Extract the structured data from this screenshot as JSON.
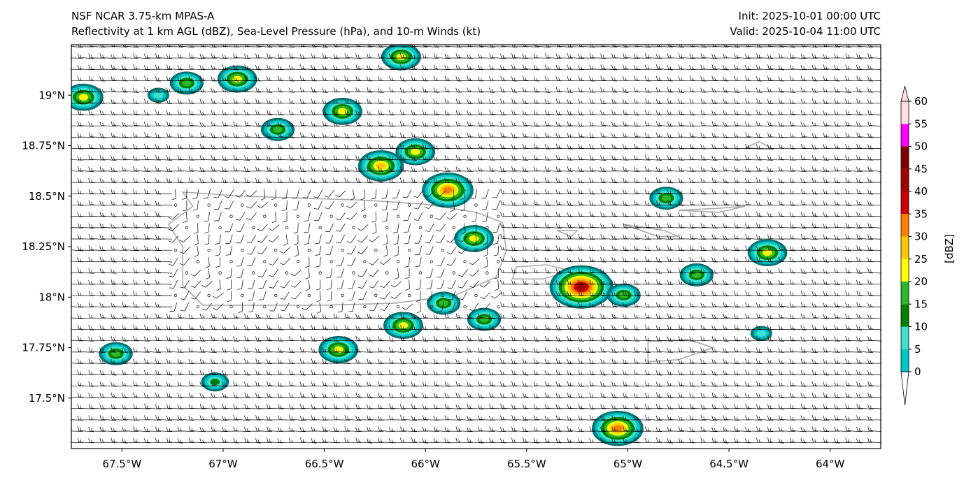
{
  "header": {
    "model": "NSF NCAR 3.75-km MPAS-A",
    "fields": "Reflectivity at 1 km AGL (dBZ), Sea-Level Pressure (hPa), and 10-m Winds (kt)",
    "init": "Init: 2025-10-01 00:00 UTC",
    "valid": "Valid: 2025-10-04 11:00 UTC"
  },
  "map": {
    "extent": {
      "lon": [
        -67.75,
        -63.75
      ],
      "lat": [
        17.25,
        19.25
      ]
    },
    "lat_ticks": [
      {
        "value": 19.0,
        "label": "19°N"
      },
      {
        "value": 18.75,
        "label": "18.75°N"
      },
      {
        "value": 18.5,
        "label": "18.5°N"
      },
      {
        "value": 18.25,
        "label": "18.25°N"
      },
      {
        "value": 18.0,
        "label": "18°N"
      },
      {
        "value": 17.75,
        "label": "17.75°N"
      },
      {
        "value": 17.5,
        "label": "17.5°N"
      }
    ],
    "lon_ticks": [
      {
        "value": -67.5,
        "label": "67.5°W"
      },
      {
        "value": -67.0,
        "label": "67°W"
      },
      {
        "value": -66.5,
        "label": "66.5°W"
      },
      {
        "value": -66.0,
        "label": "66°W"
      },
      {
        "value": -65.5,
        "label": "65.5°W"
      },
      {
        "value": -65.0,
        "label": "65°W"
      },
      {
        "value": -64.5,
        "label": "64.5°W"
      },
      {
        "value": -64.0,
        "label": "64°W"
      }
    ],
    "coastline_color": "#aaaaaa"
  },
  "colorbar": {
    "label": "[dBZ]",
    "ticks": [
      {
        "value": 0,
        "label": "0"
      },
      {
        "value": 5,
        "label": "5"
      },
      {
        "value": 10,
        "label": "10"
      },
      {
        "value": 15,
        "label": "15"
      },
      {
        "value": 20,
        "label": "20"
      },
      {
        "value": 25,
        "label": "25"
      },
      {
        "value": 30,
        "label": "30"
      },
      {
        "value": 35,
        "label": "35"
      },
      {
        "value": 40,
        "label": "40"
      },
      {
        "value": 45,
        "label": "45"
      },
      {
        "value": 50,
        "label": "50"
      },
      {
        "value": 55,
        "label": "55"
      },
      {
        "value": 60,
        "label": "60"
      }
    ],
    "colors": [
      "#007b7b",
      "#00c8c8",
      "#40e0d0",
      "#008000",
      "#2eb82e",
      "#ffff00",
      "#ffc800",
      "#ff8000",
      "#d00000",
      "#a00000",
      "#800000",
      "#ff00ff",
      "#fde0dd"
    ]
  },
  "echoes": [
    {
      "lon": -67.69,
      "lat": 18.99,
      "dbz": 28
    },
    {
      "lon": -67.18,
      "lat": 19.06,
      "dbz": 22
    },
    {
      "lon": -66.93,
      "lat": 19.08,
      "dbz": 28
    },
    {
      "lon": -67.32,
      "lat": 19.0,
      "dbz": 12
    },
    {
      "lon": -66.12,
      "lat": 19.19,
      "dbz": 25
    },
    {
      "lon": -66.41,
      "lat": 18.92,
      "dbz": 28
    },
    {
      "lon": -66.73,
      "lat": 18.83,
      "dbz": 23
    },
    {
      "lon": -66.22,
      "lat": 18.65,
      "dbz": 32
    },
    {
      "lon": -66.05,
      "lat": 18.72,
      "dbz": 28
    },
    {
      "lon": -65.89,
      "lat": 18.53,
      "dbz": 35
    },
    {
      "lon": -65.76,
      "lat": 18.29,
      "dbz": 28
    },
    {
      "lon": -64.81,
      "lat": 18.49,
      "dbz": 20
    },
    {
      "lon": -64.31,
      "lat": 18.22,
      "dbz": 27
    },
    {
      "lon": -64.66,
      "lat": 18.11,
      "dbz": 24
    },
    {
      "lon": -65.23,
      "lat": 18.05,
      "dbz": 45
    },
    {
      "lon": -65.02,
      "lat": 18.01,
      "dbz": 24
    },
    {
      "lon": -65.91,
      "lat": 17.97,
      "dbz": 22
    },
    {
      "lon": -65.71,
      "lat": 17.89,
      "dbz": 22
    },
    {
      "lon": -66.11,
      "lat": 17.86,
      "dbz": 28
    },
    {
      "lon": -66.43,
      "lat": 17.74,
      "dbz": 26
    },
    {
      "lon": -67.53,
      "lat": 17.72,
      "dbz": 20
    },
    {
      "lon": -67.04,
      "lat": 17.58,
      "dbz": 18
    },
    {
      "lon": -64.34,
      "lat": 17.82,
      "dbz": 12
    },
    {
      "lon": -65.05,
      "lat": 17.35,
      "dbz": 38
    }
  ]
}
